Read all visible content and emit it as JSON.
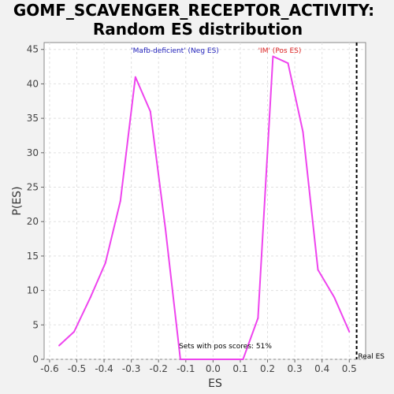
{
  "chart_data": {
    "type": "line",
    "title": [
      "GOMF_SCAVENGER_RECEPTOR_ACTIVITY:",
      "Random ES distribution"
    ],
    "xlabel": "ES",
    "ylabel": "P(ES)",
    "xlim": [
      -0.62,
      0.56
    ],
    "ylim": [
      0,
      46
    ],
    "xticks": [
      -0.6,
      -0.5,
      -0.4,
      -0.3,
      -0.2,
      -0.1,
      0.0,
      0.1,
      0.2,
      0.3,
      0.4,
      0.5
    ],
    "xtick_labels": [
      "-0.6",
      "-0.5",
      "-0.4",
      "-0.3",
      "-0.2",
      "-0.1",
      "0.0",
      "0.1",
      "0.2",
      "0.3",
      "0.4",
      "0.5"
    ],
    "yticks": [
      0,
      5,
      10,
      15,
      20,
      25,
      30,
      35,
      40,
      45
    ],
    "ytick_labels": [
      "0",
      "5",
      "10",
      "15",
      "20",
      "25",
      "30",
      "35",
      "40",
      "45"
    ],
    "grid": true,
    "series": [
      {
        "color": "#ee44ee",
        "x": [
          -0.565,
          -0.51,
          -0.45,
          -0.395,
          -0.34,
          -0.285,
          -0.23,
          -0.175,
          -0.12,
          -0.065,
          -0.01,
          0.045,
          0.1,
          0.11,
          0.165,
          0.22,
          0.275,
          0.33,
          0.385,
          0.445,
          0.5
        ],
        "y": [
          2,
          4,
          9,
          14,
          23,
          41,
          36,
          19,
          0,
          0,
          0,
          0,
          0,
          0,
          6,
          44,
          43,
          33,
          13,
          9,
          4
        ]
      }
    ],
    "real_es": {
      "x": 0.527,
      "label": "Real ES",
      "color": "#000000"
    },
    "annotations": {
      "neg_label": "'Mafb-deficient' (Neg ES)",
      "neg_color": "#2222bb",
      "pos_label": "'IM' (Pos ES)",
      "pos_color": "#dd2222",
      "pos_scores_label": "Sets with pos scores: 51%"
    }
  }
}
